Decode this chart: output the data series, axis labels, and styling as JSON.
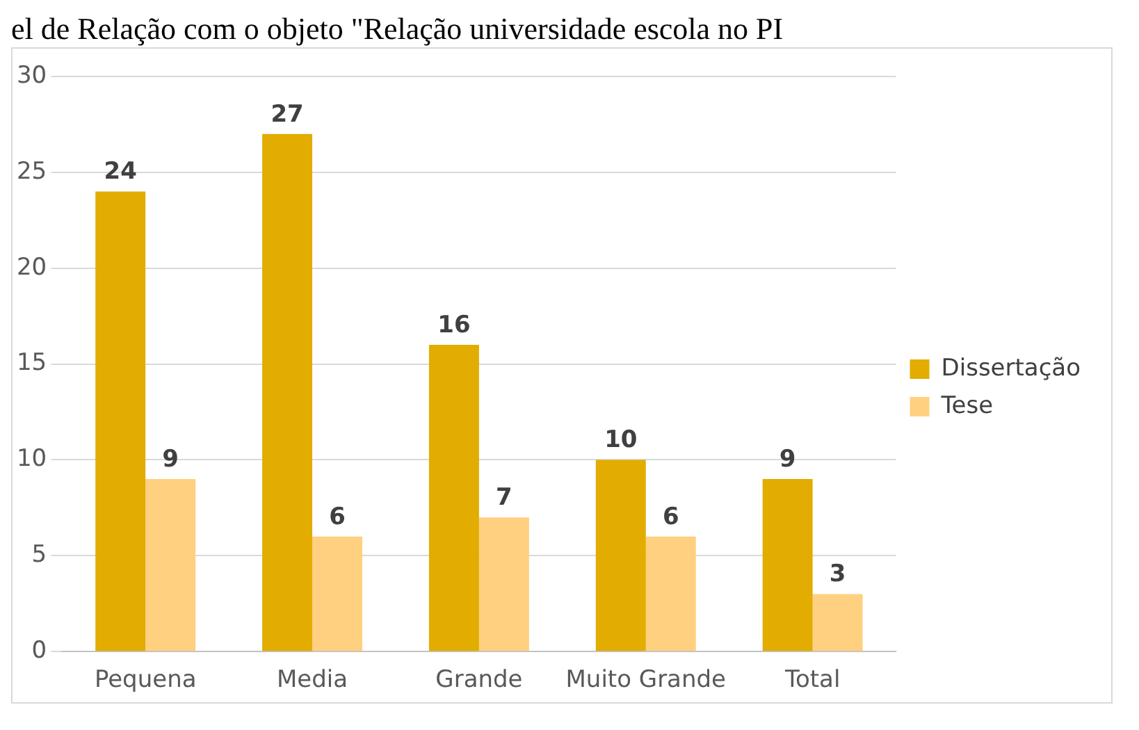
{
  "chart_data": {
    "type": "bar",
    "title": "el de Relação com o objeto \"Relação universidade escola no PI",
    "categories": [
      "Pequena",
      "Media",
      "Grande",
      "Muito Grande",
      "Total"
    ],
    "series": [
      {
        "name": "Dissertação",
        "color": "#e2ac00",
        "values": [
          24,
          27,
          16,
          10,
          9
        ]
      },
      {
        "name": "Tese",
        "color": "#ffd07f",
        "values": [
          9,
          6,
          7,
          6,
          3
        ]
      }
    ],
    "ylim": [
      0,
      30
    ],
    "yticks": [
      0,
      5,
      10,
      15,
      20,
      25,
      30
    ],
    "grid": "y",
    "legend": "right",
    "data_labels": true
  }
}
